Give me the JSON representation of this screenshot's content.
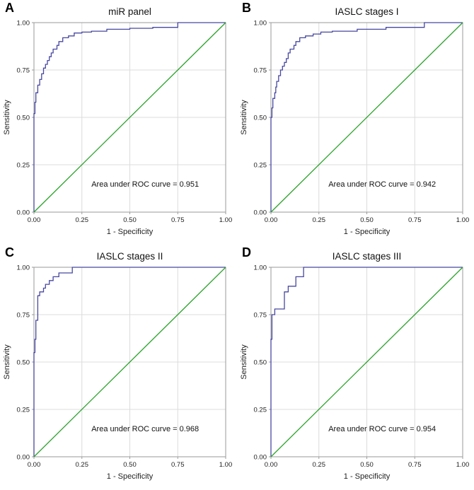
{
  "figure": {
    "background": "#ffffff",
    "roc_color": "#4747a1",
    "diagonal_color": "#2aa22a",
    "grid_color": "#dcdcdc",
    "frame_color": "#9a9a9a",
    "tick_text_color": "#222222",
    "annotation_color": "#111111"
  },
  "axes": {
    "x_label": "1 - Specificity",
    "y_label": "Sensitivity",
    "tick_values": [
      0,
      0.25,
      0.5,
      0.75,
      1
    ],
    "tick_labels": [
      "0.00",
      "0.25",
      "0.50",
      "0.75",
      "1.00"
    ]
  },
  "chart_data": [
    {
      "type": "line",
      "panel_label": "A",
      "title": "miR panel",
      "auc": 0.951,
      "annotation": "Area under ROC curve = 0.951",
      "xlabel": "1 - Specificity",
      "ylabel": "Sensitivity",
      "xlim": [
        0,
        1
      ],
      "ylim": [
        0,
        1
      ],
      "grid": true,
      "series": [
        {
          "name": "ROC curve",
          "color": "#4747a1",
          "step": true,
          "points": [
            [
              0,
              0
            ],
            [
              0.005,
              0.52
            ],
            [
              0.01,
              0.58
            ],
            [
              0.02,
              0.63
            ],
            [
              0.03,
              0.67
            ],
            [
              0.04,
              0.7
            ],
            [
              0.05,
              0.73
            ],
            [
              0.06,
              0.76
            ],
            [
              0.07,
              0.78
            ],
            [
              0.08,
              0.8
            ],
            [
              0.09,
              0.82
            ],
            [
              0.1,
              0.84
            ],
            [
              0.12,
              0.86
            ],
            [
              0.13,
              0.88
            ],
            [
              0.15,
              0.9
            ],
            [
              0.18,
              0.92
            ],
            [
              0.21,
              0.93
            ],
            [
              0.25,
              0.945
            ],
            [
              0.3,
              0.95
            ],
            [
              0.38,
              0.955
            ],
            [
              0.5,
              0.965
            ],
            [
              0.62,
              0.97
            ],
            [
              0.75,
              0.975
            ],
            [
              0.95,
              1.0
            ],
            [
              1,
              1
            ]
          ]
        },
        {
          "name": "Reference diagonal",
          "color": "#2aa22a",
          "step": false,
          "points": [
            [
              0,
              0
            ],
            [
              1,
              1
            ]
          ]
        }
      ]
    },
    {
      "type": "line",
      "panel_label": "B",
      "title": "IASLC stages I",
      "auc": 0.942,
      "annotation": "Area under ROC curve = 0.942",
      "xlabel": "1 - Specificity",
      "ylabel": "Sensitivity",
      "xlim": [
        0,
        1
      ],
      "ylim": [
        0,
        1
      ],
      "grid": true,
      "series": [
        {
          "name": "ROC curve",
          "color": "#4747a1",
          "step": true,
          "points": [
            [
              0,
              0
            ],
            [
              0.005,
              0.5
            ],
            [
              0.01,
              0.55
            ],
            [
              0.02,
              0.6
            ],
            [
              0.025,
              0.63
            ],
            [
              0.03,
              0.66
            ],
            [
              0.04,
              0.69
            ],
            [
              0.05,
              0.72
            ],
            [
              0.06,
              0.75
            ],
            [
              0.07,
              0.77
            ],
            [
              0.08,
              0.79
            ],
            [
              0.09,
              0.81
            ],
            [
              0.1,
              0.84
            ],
            [
              0.12,
              0.86
            ],
            [
              0.13,
              0.88
            ],
            [
              0.15,
              0.9
            ],
            [
              0.18,
              0.92
            ],
            [
              0.22,
              0.93
            ],
            [
              0.26,
              0.94
            ],
            [
              0.32,
              0.95
            ],
            [
              0.45,
              0.955
            ],
            [
              0.6,
              0.965
            ],
            [
              0.8,
              0.975
            ],
            [
              0.97,
              1.0
            ],
            [
              1,
              1
            ]
          ]
        },
        {
          "name": "Reference diagonal",
          "color": "#2aa22a",
          "step": false,
          "points": [
            [
              0,
              0
            ],
            [
              1,
              1
            ]
          ]
        }
      ]
    },
    {
      "type": "line",
      "panel_label": "C",
      "title": "IASLC stages II",
      "auc": 0.968,
      "annotation": "Area under ROC curve = 0.968",
      "xlabel": "1 - Specificity",
      "ylabel": "Sensitivity",
      "xlim": [
        0,
        1
      ],
      "ylim": [
        0,
        1
      ],
      "grid": true,
      "series": [
        {
          "name": "ROC curve",
          "color": "#4747a1",
          "step": true,
          "points": [
            [
              0,
              0
            ],
            [
              0.005,
              0.55
            ],
            [
              0.01,
              0.62
            ],
            [
              0.02,
              0.72
            ],
            [
              0.03,
              0.85
            ],
            [
              0.05,
              0.87
            ],
            [
              0.06,
              0.89
            ],
            [
              0.08,
              0.91
            ],
            [
              0.1,
              0.93
            ],
            [
              0.13,
              0.95
            ],
            [
              0.2,
              0.97
            ],
            [
              0.33,
              1.0
            ],
            [
              1,
              1
            ]
          ]
        },
        {
          "name": "Reference diagonal",
          "color": "#2aa22a",
          "step": false,
          "points": [
            [
              0,
              0
            ],
            [
              1,
              1
            ]
          ]
        }
      ]
    },
    {
      "type": "line",
      "panel_label": "D",
      "title": "IASLC stages III",
      "auc": 0.954,
      "annotation": "Area under ROC curve = 0.954",
      "xlabel": "1 - Specificity",
      "ylabel": "Sensitivity",
      "xlim": [
        0,
        1
      ],
      "ylim": [
        0,
        1
      ],
      "grid": true,
      "series": [
        {
          "name": "ROC curve",
          "color": "#4747a1",
          "step": true,
          "points": [
            [
              0,
              0
            ],
            [
              0.005,
              0.62
            ],
            [
              0.02,
              0.75
            ],
            [
              0.07,
              0.78
            ],
            [
              0.09,
              0.87
            ],
            [
              0.13,
              0.9
            ],
            [
              0.17,
              0.95
            ],
            [
              0.25,
              1.0
            ],
            [
              1,
              1
            ]
          ]
        },
        {
          "name": "Reference diagonal",
          "color": "#2aa22a",
          "step": false,
          "points": [
            [
              0,
              0
            ],
            [
              1,
              1
            ]
          ]
        }
      ]
    }
  ]
}
